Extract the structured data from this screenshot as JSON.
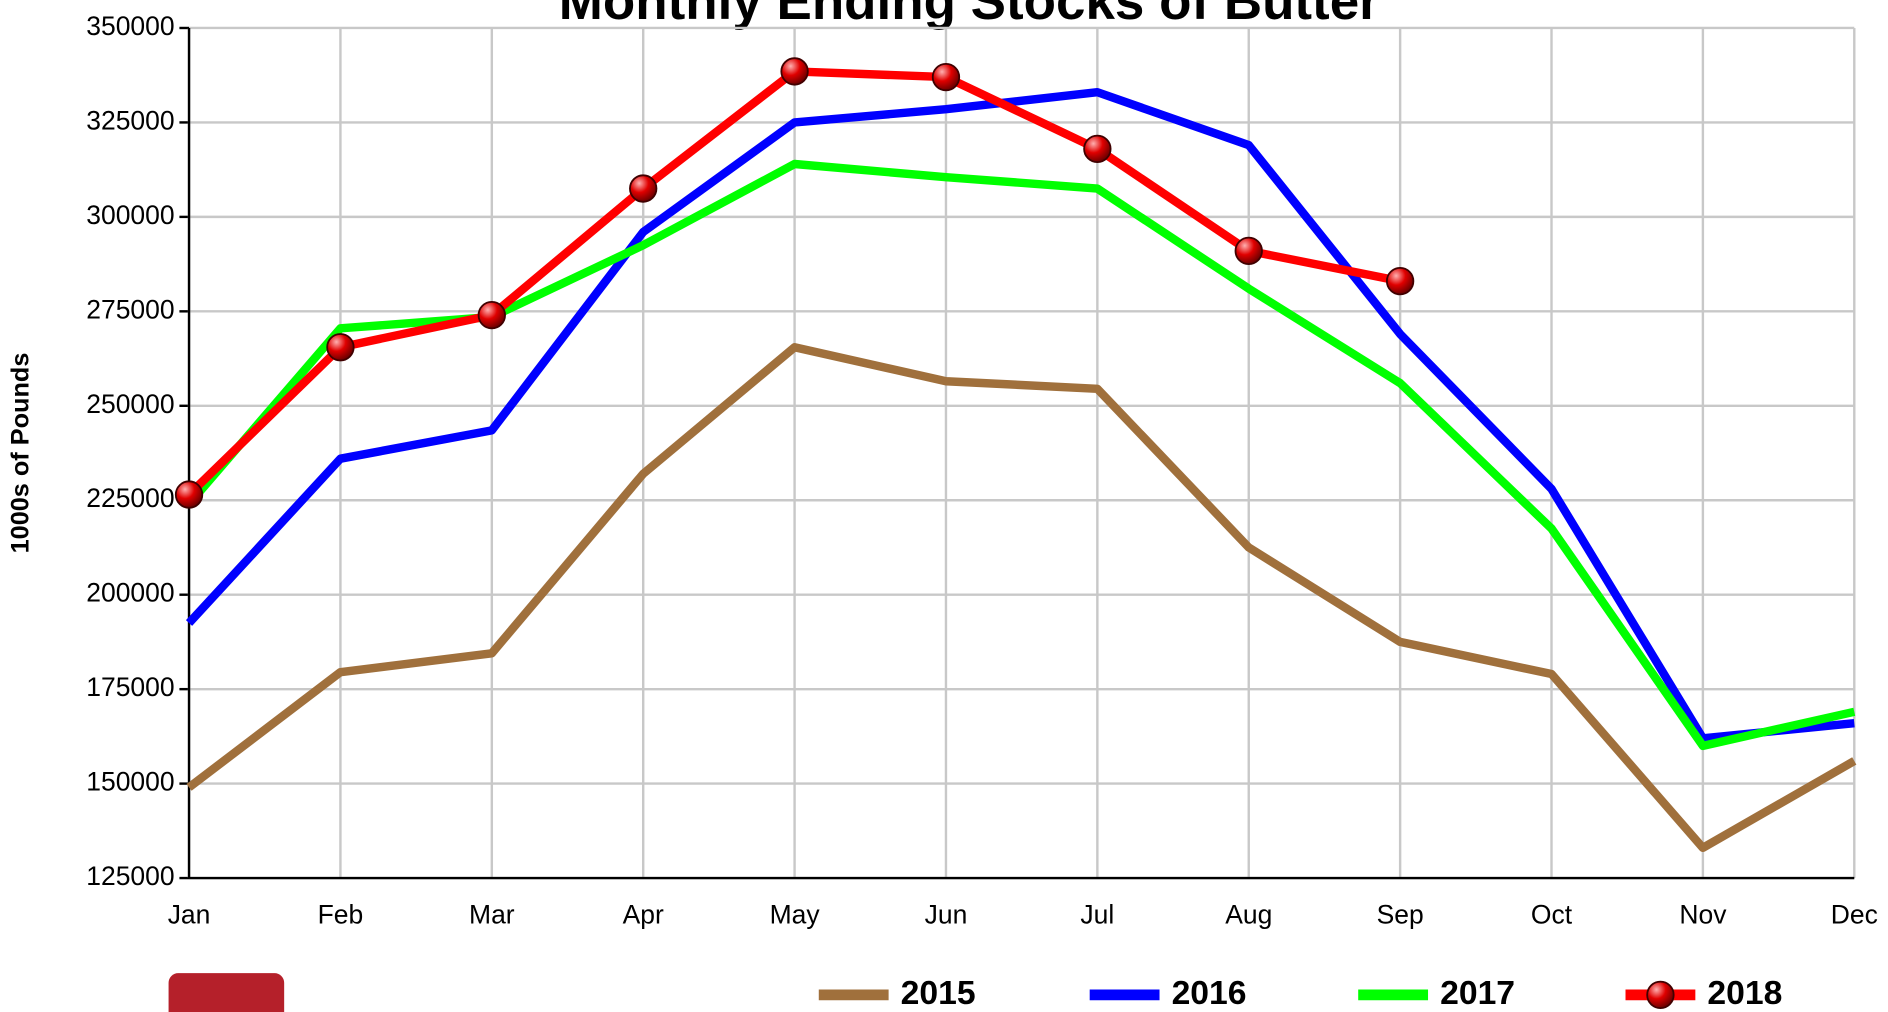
{
  "chart_data": {
    "type": "line",
    "title": "Monthly Ending Stocks of Butter",
    "y_label": "1000s of Pounds",
    "categories": [
      "Jan",
      "Feb",
      "Mar",
      "Apr",
      "May",
      "Jun",
      "Jul",
      "Aug",
      "Sep",
      "Oct",
      "Nov",
      "Dec"
    ],
    "series": [
      {
        "name": "2015",
        "color": "#a0703c",
        "values": [
          149000,
          179500,
          184500,
          232000,
          265500,
          256500,
          254500,
          212500,
          187500,
          179000,
          133000,
          156000
        ]
      },
      {
        "name": "2016",
        "color": "#0000ff",
        "values": [
          192500,
          236000,
          243500,
          296000,
          325000,
          328500,
          333000,
          319000,
          269000,
          228000,
          162000,
          166000
        ]
      },
      {
        "name": "2017",
        "color": "#00ff00",
        "values": [
          224000,
          270500,
          273500,
          292500,
          314000,
          310500,
          307500,
          281000,
          256000,
          217500,
          160000,
          169000
        ]
      },
      {
        "name": "2018",
        "color": "#ff0000",
        "marker": true,
        "values": [
          226500,
          265500,
          274000,
          307500,
          338500,
          337000,
          318000,
          291000,
          283000,
          null,
          null,
          null
        ]
      }
    ],
    "ylim": [
      125000,
      350000
    ],
    "yticks": [
      125000,
      150000,
      175000,
      200000,
      225000,
      250000,
      275000,
      300000,
      325000,
      350000
    ],
    "grid": true,
    "legend": "bottom"
  }
}
